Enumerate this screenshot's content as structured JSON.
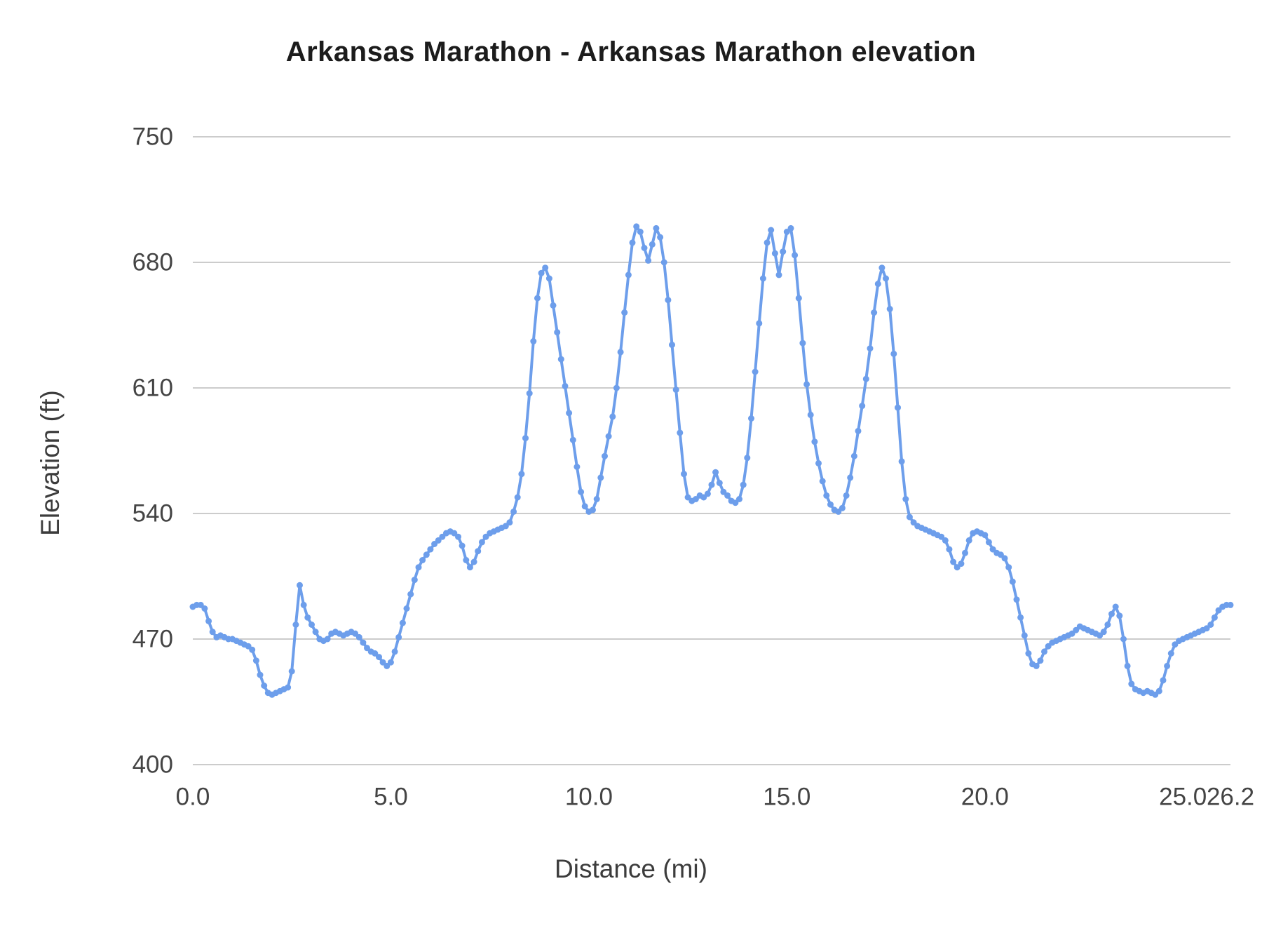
{
  "chart_data": {
    "type": "line",
    "title": "Arkansas Marathon - Arkansas Marathon elevation",
    "xlabel": "Distance (mi)",
    "ylabel": "Elevation (ft)",
    "legend": "none",
    "grid": true,
    "marker": "circle",
    "line_color": "#6d9eeb",
    "gridline_color": "#cccccc",
    "text_color": "#444444",
    "title_color": "#1c1c1c",
    "axis_title_color": "#3c3c3c",
    "xlim": [
      0,
      26.2
    ],
    "ylim": [
      400,
      750
    ],
    "yticks": [
      400,
      470,
      540,
      610,
      680,
      750
    ],
    "ytick_labels": [
      "400",
      "470",
      "540",
      "610",
      "680",
      "750"
    ],
    "xticks": [
      0,
      5,
      10,
      15,
      20,
      25,
      26.2
    ],
    "xtick_labels": [
      "0.0",
      "5.0",
      "10.0",
      "15.0",
      "20.0",
      "25.0",
      "26.2"
    ],
    "x_mi": {
      "start": 0,
      "step": 0.1,
      "count": 263
    },
    "elevation_ft": [
      488,
      489,
      489,
      487,
      480,
      474,
      471,
      472,
      471,
      470,
      470,
      469,
      468,
      467,
      466,
      464,
      458,
      450,
      444,
      440,
      439,
      440,
      441,
      442,
      443,
      452,
      478,
      500,
      489,
      482,
      478,
      474,
      470,
      469,
      470,
      473,
      474,
      473,
      472,
      473,
      474,
      473,
      471,
      468,
      465,
      463,
      462,
      460,
      457,
      455,
      457,
      463,
      471,
      479,
      487,
      495,
      503,
      510,
      514,
      517,
      520,
      523,
      525,
      527,
      529,
      530,
      529,
      527,
      522,
      514,
      510,
      513,
      519,
      524,
      527,
      529,
      530,
      531,
      532,
      533,
      535,
      541,
      549,
      562,
      582,
      607,
      636,
      660,
      674,
      677,
      671,
      656,
      641,
      626,
      611,
      596,
      581,
      566,
      552,
      544,
      541,
      542,
      548,
      560,
      572,
      583,
      594,
      610,
      630,
      652,
      673,
      691,
      700,
      697,
      688,
      681,
      690,
      699,
      694,
      680,
      659,
      634,
      609,
      585,
      562,
      549,
      547,
      548,
      550,
      549,
      551,
      556,
      563,
      557,
      552,
      550,
      547,
      546,
      548,
      556,
      571,
      593,
      619,
      646,
      671,
      691,
      698,
      685,
      673,
      686,
      697,
      699,
      684,
      660,
      635,
      612,
      595,
      580,
      568,
      558,
      550,
      545,
      542,
      541,
      543,
      550,
      560,
      572,
      586,
      600,
      615,
      632,
      652,
      668,
      677,
      671,
      654,
      629,
      599,
      569,
      548,
      538,
      535,
      533,
      532,
      531,
      530,
      529,
      528,
      527,
      525,
      520,
      513,
      510,
      512,
      518,
      525,
      529,
      530,
      529,
      528,
      524,
      520,
      518,
      517,
      515,
      510,
      502,
      492,
      482,
      472,
      462,
      456,
      455,
      458,
      463,
      466,
      468,
      469,
      470,
      471,
      472,
      473,
      475,
      477,
      476,
      475,
      474,
      473,
      472,
      474,
      478,
      484,
      488,
      483,
      470,
      455,
      445,
      442,
      441,
      440,
      441,
      440,
      439,
      441,
      447,
      455,
      462,
      467,
      469,
      470,
      471,
      472,
      473,
      474,
      475,
      476,
      478,
      482,
      486,
      488,
      489,
      489
    ]
  }
}
